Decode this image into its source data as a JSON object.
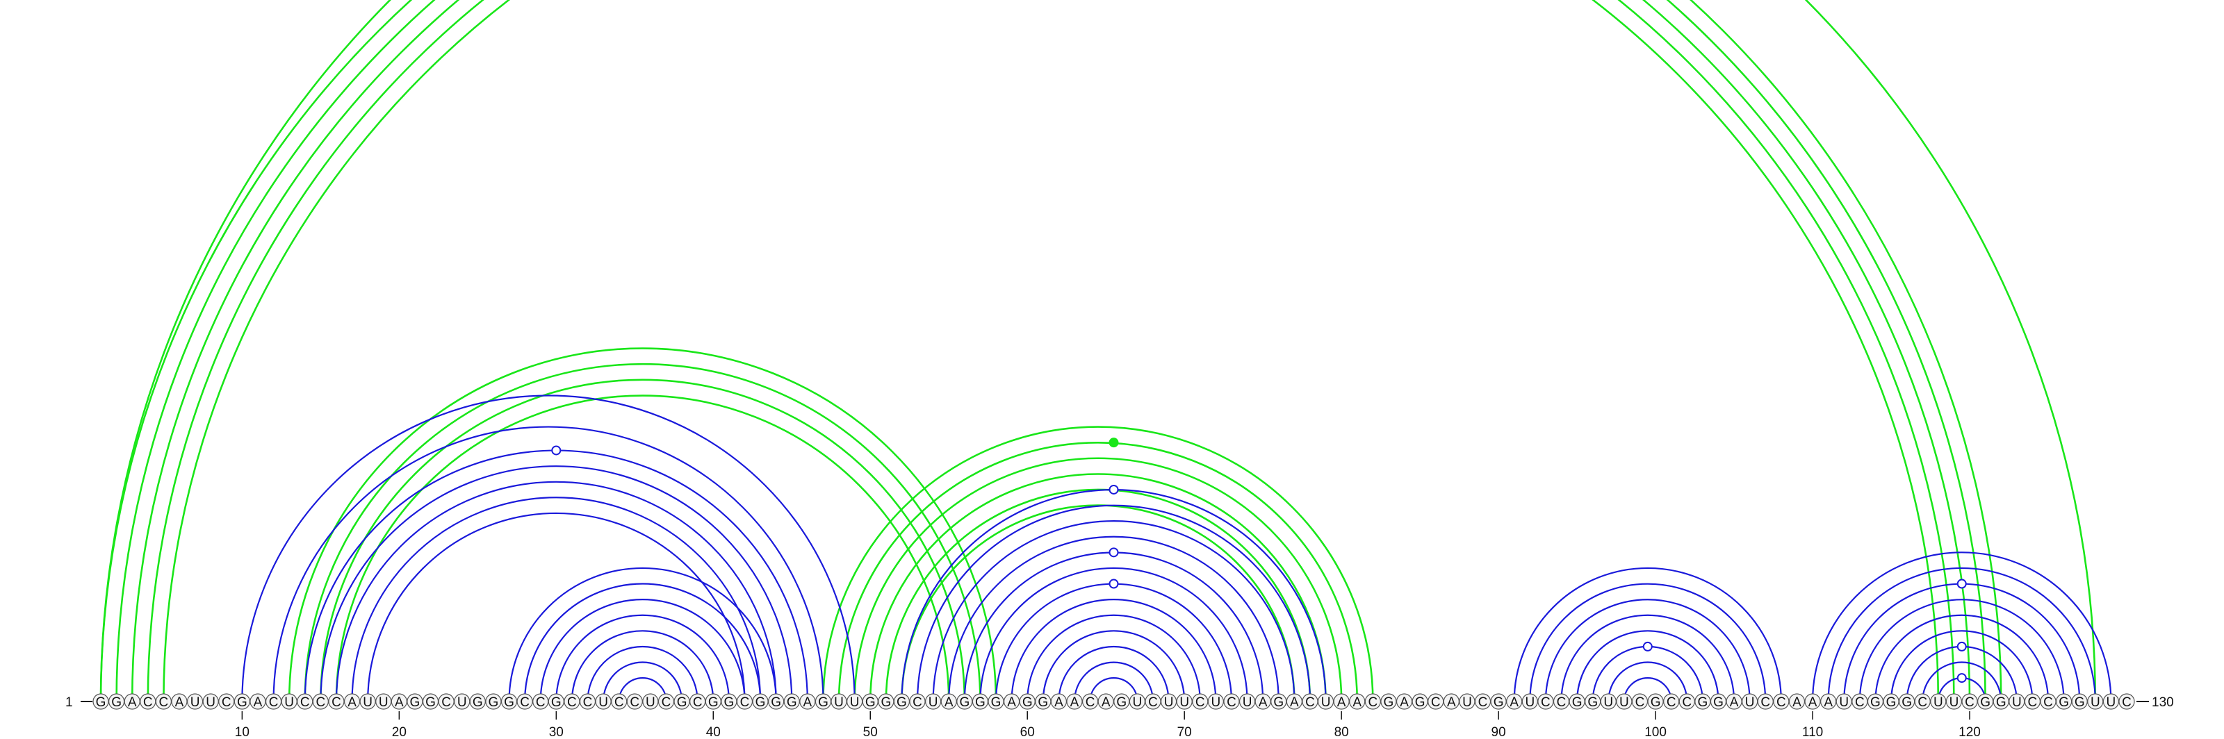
{
  "diagram": {
    "sequence": "GGACCAUUCGACUCCCAUUAGGCUGGGCCGCCUCCUCGCGGCGGGAGUUGGGCUAGGGAGGAACAGUCUUCUCUAGACUAACGAGCAUCGAUCCGGUUCGCCGGAUCCAAAUCGGGCUUCGGUCCGGUUC",
    "start_label": "1",
    "end_label": "130",
    "tick_labels": [
      "10",
      "20",
      "30",
      "40",
      "50",
      "60",
      "70",
      "80",
      "90",
      "100",
      "110",
      "120"
    ],
    "colors": {
      "blue": "#1a1adb",
      "green": "#19e619",
      "text": "#111111",
      "circle_stroke": "#555555"
    },
    "blue_helices": [
      {
        "i": 10,
        "j": 49,
        "n": 1
      },
      {
        "i": 12,
        "j": 47,
        "n": 1
      },
      {
        "i": 14,
        "j": 46,
        "n": 5
      },
      {
        "i": 27,
        "j": 44,
        "n": 8
      },
      {
        "i": 52,
        "j": 79,
        "n": 13
      },
      {
        "i": 91,
        "j": 108,
        "n": 8
      },
      {
        "i": 110,
        "j": 129,
        "n": 9
      }
    ],
    "green_helices": [
      {
        "i": 1,
        "j": 122,
        "n": 5
      },
      {
        "i": 1,
        "j": 128,
        "n": 1
      },
      {
        "i": 13,
        "j": 58,
        "n": 4
      },
      {
        "i": 47,
        "j": 82,
        "n": 6
      }
    ]
  }
}
